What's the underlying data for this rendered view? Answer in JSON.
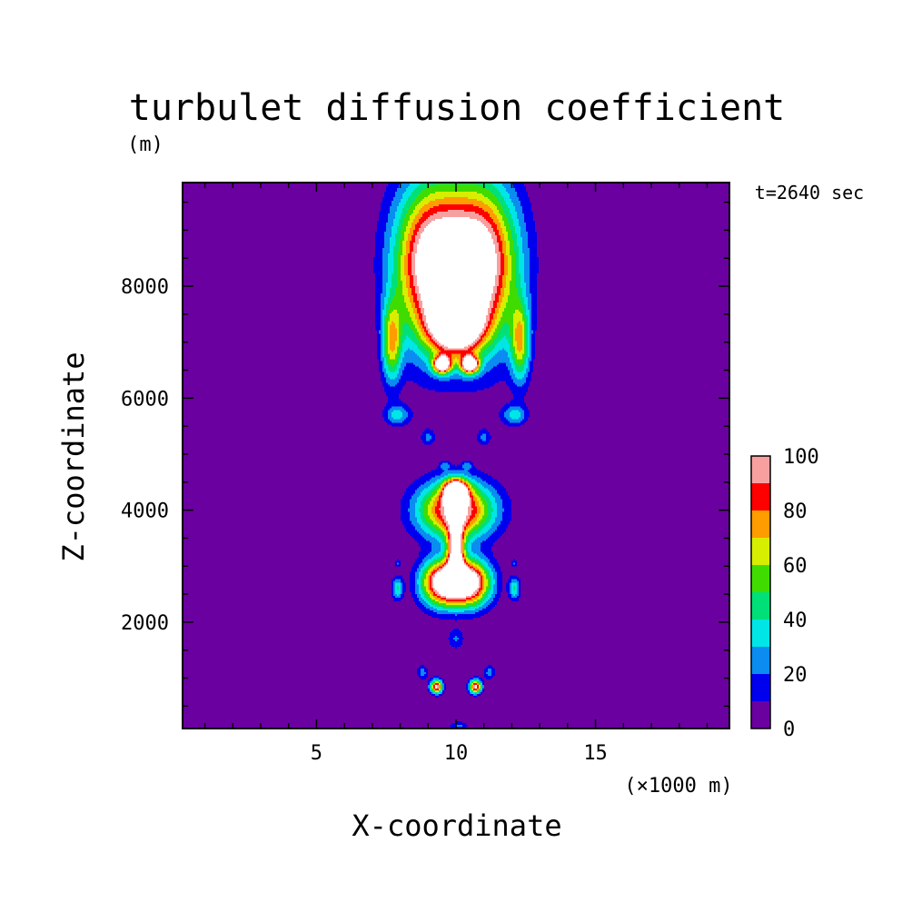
{
  "chart_data": {
    "type": "heatmap",
    "title": "turbulet diffusion coefficient",
    "xlabel": "X-coordinate",
    "ylabel": "Z-coordinate",
    "x_unit": "(×1000 m)",
    "y_unit": "(m)",
    "time_label": "t=2640 sec",
    "xlim": [
      0.2,
      19.8
    ],
    "ylim": [
      100,
      9850
    ],
    "x_ticks": [
      5,
      10,
      15
    ],
    "y_ticks": [
      2000,
      4000,
      6000,
      8000
    ],
    "x_minor_step": 1,
    "y_minor_step": 500,
    "grid": false,
    "colorbar": {
      "position": "right",
      "levels": [
        0,
        10,
        20,
        30,
        40,
        50,
        60,
        70,
        80,
        90,
        100
      ],
      "tick_labels": [
        0,
        20,
        40,
        60,
        80,
        100
      ],
      "colors": [
        "#6a00a0",
        "#0000ee",
        "#0a8cf0",
        "#00e6e6",
        "#00e078",
        "#40dc00",
        "#d8ee00",
        "#ff9c00",
        "#ff0000",
        "#f8a0a0"
      ],
      "above_max_color": "#ffffff"
    },
    "features": [
      {
        "x": 9.1,
        "z": 8400,
        "sx": 1.3,
        "sz": 1400,
        "peak": 1.0
      },
      {
        "x": 10.9,
        "z": 8400,
        "sx": 1.3,
        "sz": 1400,
        "peak": 1.0
      },
      {
        "x": 7.7,
        "z": 7000,
        "sx": 0.35,
        "sz": 700,
        "peak": 0.55
      },
      {
        "x": 12.3,
        "z": 7000,
        "sx": 0.35,
        "sz": 700,
        "peak": 0.55
      },
      {
        "x": 10.0,
        "z": 7300,
        "sx": 0.9,
        "sz": 500,
        "peak": 0.95
      },
      {
        "x": 9.5,
        "z": 6600,
        "sx": 0.3,
        "sz": 150,
        "peak": 1.0
      },
      {
        "x": 10.5,
        "z": 6600,
        "sx": 0.3,
        "sz": 150,
        "peak": 1.0
      },
      {
        "x": 7.9,
        "z": 5700,
        "sx": 0.45,
        "sz": 180,
        "peak": 0.3
      },
      {
        "x": 12.1,
        "z": 5700,
        "sx": 0.45,
        "sz": 180,
        "peak": 0.3
      },
      {
        "x": 9.0,
        "z": 5300,
        "sx": 0.25,
        "sz": 150,
        "peak": 0.2
      },
      {
        "x": 11.0,
        "z": 5300,
        "sx": 0.25,
        "sz": 150,
        "peak": 0.2
      },
      {
        "x": 9.6,
        "z": 4800,
        "sx": 0.18,
        "sz": 80,
        "peak": 0.18
      },
      {
        "x": 10.4,
        "z": 4800,
        "sx": 0.18,
        "sz": 80,
        "peak": 0.18
      },
      {
        "x": 10.0,
        "z": 4000,
        "sx": 1.3,
        "sz": 500,
        "peak": 0.95
      },
      {
        "x": 10.0,
        "z": 4350,
        "sx": 0.4,
        "sz": 200,
        "peak": 1.0
      },
      {
        "x": 10.0,
        "z": 3300,
        "sx": 0.3,
        "sz": 500,
        "peak": 0.85
      },
      {
        "x": 9.5,
        "z": 2700,
        "sx": 0.75,
        "sz": 400,
        "peak": 1.0
      },
      {
        "x": 10.5,
        "z": 2700,
        "sx": 0.75,
        "sz": 400,
        "peak": 1.0
      },
      {
        "x": 7.9,
        "z": 2600,
        "sx": 0.2,
        "sz": 200,
        "peak": 0.35
      },
      {
        "x": 12.1,
        "z": 2600,
        "sx": 0.2,
        "sz": 200,
        "peak": 0.35
      },
      {
        "x": 7.9,
        "z": 3050,
        "sx": 0.12,
        "sz": 70,
        "peak": 0.18
      },
      {
        "x": 12.1,
        "z": 3050,
        "sx": 0.12,
        "sz": 70,
        "peak": 0.18
      },
      {
        "x": 10.0,
        "z": 1700,
        "sx": 0.3,
        "sz": 180,
        "peak": 0.18
      },
      {
        "x": 8.8,
        "z": 1100,
        "sx": 0.2,
        "sz": 130,
        "peak": 0.22
      },
      {
        "x": 11.2,
        "z": 1100,
        "sx": 0.2,
        "sz": 130,
        "peak": 0.22
      },
      {
        "x": 9.3,
        "z": 850,
        "sx": 0.22,
        "sz": 120,
        "peak": 0.9
      },
      {
        "x": 10.7,
        "z": 850,
        "sx": 0.22,
        "sz": 120,
        "peak": 0.9
      },
      {
        "x": 10.1,
        "z": 150,
        "sx": 0.35,
        "sz": 80,
        "peak": 0.2
      }
    ]
  }
}
